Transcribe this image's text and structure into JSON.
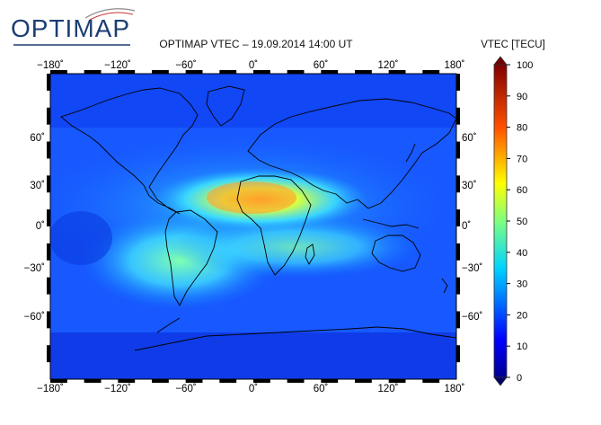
{
  "logo_text": "OPTIMAP",
  "title": "OPTIMAP VTEC – 19.09.2014 14:00 UT",
  "colorbar": {
    "label": "VTEC [TECU]",
    "ticks": [
      "0",
      "10",
      "20",
      "30",
      "40",
      "50",
      "60",
      "70",
      "80",
      "90",
      "100"
    ]
  },
  "map": {
    "lon_labels": [
      "−180˚",
      "−120˚",
      "−60˚",
      "0˚",
      "60˚",
      "120˚",
      "180˚"
    ],
    "lat_labels": [
      "60˚",
      "30˚",
      "0˚",
      "−30˚",
      "−60˚"
    ]
  }
}
